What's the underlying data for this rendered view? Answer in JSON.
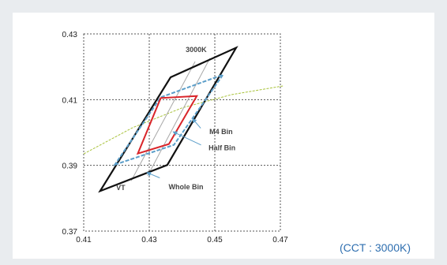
{
  "caption": "(CCT : 3000K)",
  "colors": {
    "whole_bin": "#111111",
    "half_bin": "#5b9ec9",
    "m4_bin": "#d9252a",
    "vt_lines": "#a8a8a8",
    "planckian": "#a8c23a",
    "grid": "#555555",
    "arrow": "#5b9ec9",
    "caption": "#2f6fb0"
  },
  "chart_data": {
    "type": "line",
    "xlim": [
      0.41,
      0.47
    ],
    "ylim": [
      0.37,
      0.43
    ],
    "xticks": [
      0.41,
      0.43,
      0.45,
      0.47
    ],
    "yticks": [
      0.37,
      0.39,
      0.41,
      0.43
    ],
    "xtick_labels": [
      "0.41",
      "0.43",
      "0.45",
      "0.47"
    ],
    "ytick_labels": [
      "0.37",
      "0.39",
      "0.41",
      "0.43"
    ],
    "grid": true,
    "series": [
      {
        "key": "whole",
        "points": [
          [
            0.415,
            0.3822
          ],
          [
            0.4355,
            0.3901
          ],
          [
            0.4565,
            0.4258
          ],
          [
            0.4365,
            0.4168
          ]
        ]
      },
      {
        "key": "half",
        "points": [
          [
            0.4195,
            0.3902
          ],
          [
            0.4375,
            0.3962
          ],
          [
            0.4525,
            0.4176
          ],
          [
            0.4335,
            0.4107
          ]
        ]
      },
      {
        "key": "m4",
        "points": [
          [
            0.4265,
            0.3936
          ],
          [
            0.436,
            0.3965
          ],
          [
            0.4445,
            0.4111
          ],
          [
            0.4335,
            0.4105
          ]
        ]
      }
    ],
    "vt_lines": [
      [
        [
          0.4245,
          0.3853
        ],
        [
          0.444,
          0.4216
        ]
      ],
      [
        [
          0.4295,
          0.3868
        ],
        [
          0.4485,
          0.4226
        ]
      ]
    ],
    "planckian": [
      [
        0.41,
        0.3935
      ],
      [
        0.425,
        0.4015
      ],
      [
        0.44,
        0.4075
      ],
      [
        0.455,
        0.4115
      ],
      [
        0.471,
        0.4142
      ]
    ],
    "annotations": [
      {
        "text": "3000K",
        "x": 0.4443,
        "y": 0.4245
      },
      {
        "text": "M4 Bin",
        "x": 0.4519,
        "y": 0.3995
      },
      {
        "text": "Half Bin",
        "x": 0.4522,
        "y": 0.3946
      },
      {
        "text": "Whole Bin",
        "x": 0.4412,
        "y": 0.3827
      },
      {
        "text": "VT",
        "x": 0.4213,
        "y": 0.3825
      }
    ],
    "arrows": [
      {
        "from": [
          0.4457,
          0.4013
        ],
        "to": [
          0.4432,
          0.4042
        ]
      },
      {
        "from": [
          0.4458,
          0.3962
        ],
        "to": [
          0.4373,
          0.4002
        ]
      },
      {
        "from": [
          0.4332,
          0.3862
        ],
        "to": [
          0.4293,
          0.3878
        ]
      }
    ]
  }
}
